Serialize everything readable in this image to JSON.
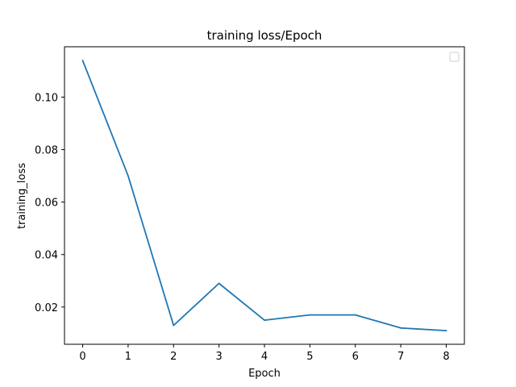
{
  "chart_data": {
    "type": "line",
    "title": "training loss/Epoch",
    "xlabel": "Epoch",
    "ylabel": "training_loss",
    "x": [
      0,
      1,
      2,
      3,
      4,
      5,
      6,
      7,
      8
    ],
    "series": [
      {
        "values": [
          0.114,
          0.07,
          0.013,
          0.029,
          0.015,
          0.017,
          0.017,
          0.012,
          0.011
        ],
        "color": "#1f77b4"
      }
    ],
    "xticks": [
      "0",
      "1",
      "2",
      "3",
      "4",
      "5",
      "6",
      "7",
      "8"
    ],
    "yticks": [
      "0.02",
      "0.04",
      "0.06",
      "0.08",
      "0.10"
    ],
    "ytick_values": [
      0.02,
      0.04,
      0.06,
      0.08,
      0.1
    ],
    "xlim": [
      -0.4,
      8.4
    ],
    "ylim": [
      0.0058,
      0.1192
    ],
    "grid": false,
    "legend": "top-right (empty)"
  }
}
